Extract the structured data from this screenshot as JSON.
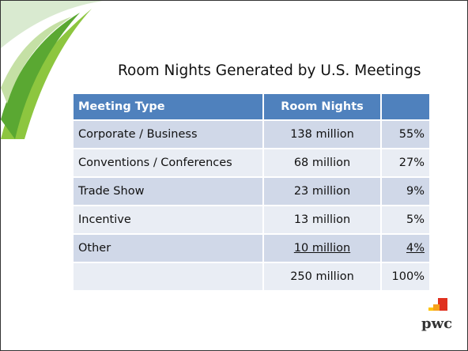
{
  "slide": {
    "title": "Room Nights Generated by U.S. Meetings"
  },
  "table": {
    "columns": [
      "Meeting Type",
      "Room Nights",
      ""
    ],
    "rows": [
      [
        "Corporate / Business",
        "138 million",
        "55%"
      ],
      [
        "Conventions / Conferences",
        "68 million",
        "27%"
      ],
      [
        "Trade Show",
        "23 million",
        "9%"
      ],
      [
        "Incentive",
        "13 million",
        "5%"
      ],
      [
        "Other",
        "10 million",
        "4%"
      ],
      [
        "",
        "250 million",
        "100%"
      ]
    ]
  },
  "logo": {
    "text": "pwc"
  }
}
